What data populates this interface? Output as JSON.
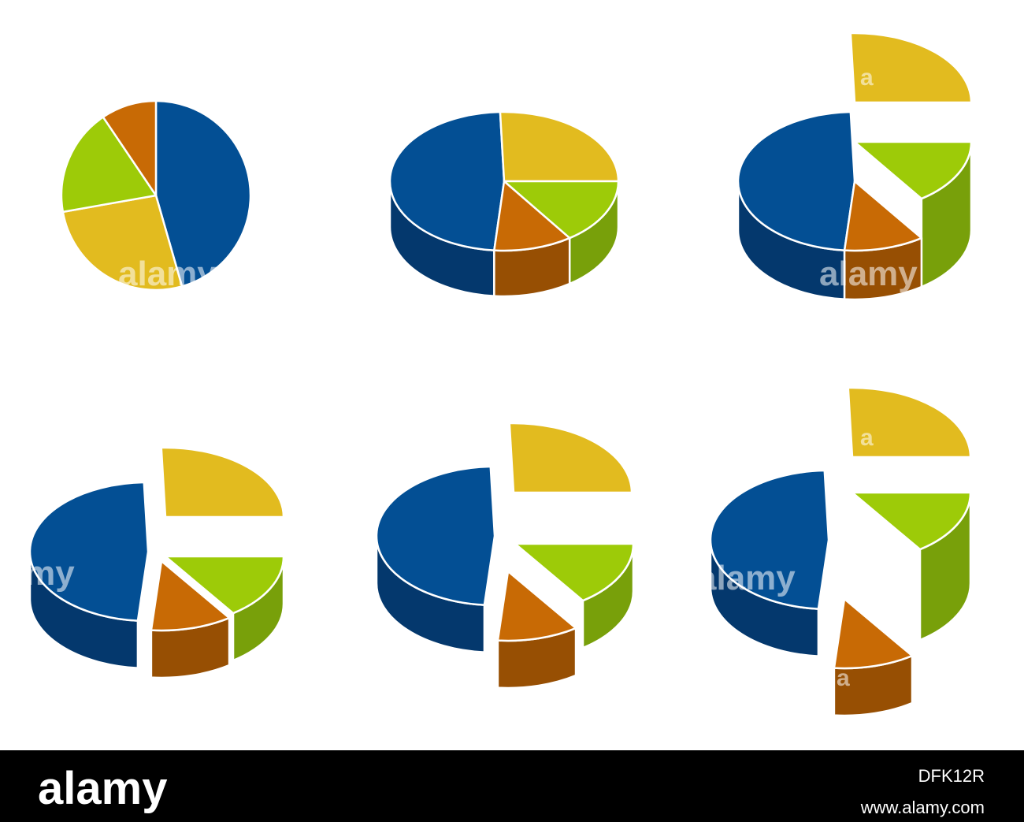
{
  "watermark": {
    "logo": "alamy",
    "letter": "a"
  },
  "footer": {
    "logo": "alamy",
    "image_id": "DFK12R",
    "url": "www.alamy.com"
  }
}
